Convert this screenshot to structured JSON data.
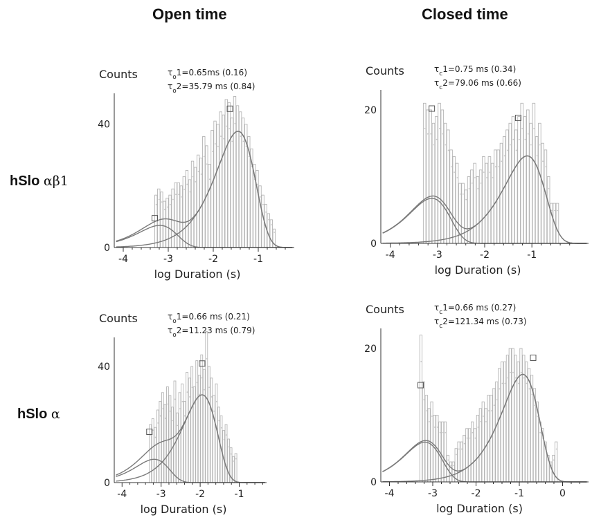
{
  "column_titles": {
    "open": "Open time",
    "closed": "Closed time"
  },
  "row_titles": {
    "top": {
      "name": "hSlo",
      "subunits": "αβ1"
    },
    "bottom": {
      "name": "hSlo",
      "subunits": "α"
    }
  },
  "chart_data": [
    {
      "id": "open-ab1",
      "type": "bar",
      "ylabel": "Counts",
      "xlabel": "log Duration (s)",
      "xlim": [
        -4.2,
        -0.2
      ],
      "ylim": [
        0,
        50
      ],
      "xticks": [
        -4,
        -3,
        -2,
        -1
      ],
      "yticks": [
        0,
        40
      ],
      "annotation": [
        {
          "sym": "τ",
          "sub": "o",
          "text": "1=0.65ms (0.16)"
        },
        {
          "sym": "τ",
          "sub": "o",
          "text": "2=35.79 ms (0.84)"
        }
      ],
      "bins": {
        "start": -3.3,
        "width": 0.0625
      },
      "values": [
        17,
        19,
        18,
        15,
        16,
        17,
        19,
        21,
        21,
        20,
        23,
        25,
        22,
        28,
        26,
        30,
        29,
        36,
        33,
        27,
        38,
        41,
        40,
        44,
        43,
        48,
        47,
        42,
        49,
        46,
        44,
        42,
        40,
        36,
        32,
        27,
        25,
        20,
        17,
        14,
        11,
        9,
        6
      ],
      "components": [
        {
          "tau": -3.19,
          "area": 0.16,
          "peak": [
            -3.3,
            9.5
          ]
        },
        {
          "tau": -1.45,
          "area": 0.84,
          "peak": [
            -1.63,
            45
          ]
        }
      ],
      "fit_scale": 122
    },
    {
      "id": "closed-ab1",
      "type": "bar",
      "ylabel": "Counts",
      "xlabel": "log Duration (s)",
      "xlim": [
        -4.2,
        0.2
      ],
      "ylim": [
        0,
        23
      ],
      "xticks": [
        -4,
        -3,
        -2,
        -1
      ],
      "yticks": [
        0,
        20
      ],
      "annotation": [
        {
          "sym": "τ",
          "sub": "c",
          "text": "1=0.75 ms (0.34)"
        },
        {
          "sym": "τ",
          "sub": "c",
          "text": "2=79.06 ms (0.66)"
        }
      ],
      "bins": {
        "start": -3.3,
        "width": 0.0625
      },
      "values": [
        21,
        20,
        20,
        18,
        19,
        21,
        20,
        18,
        17,
        14,
        13,
        12,
        9,
        9,
        8,
        10,
        11,
        12,
        10,
        11,
        13,
        12,
        13,
        12,
        14,
        14,
        15,
        16,
        17,
        18,
        19,
        17,
        19,
        21,
        19,
        20,
        18,
        21,
        16,
        18,
        15,
        14,
        10,
        6,
        6,
        6
      ],
      "components": [
        {
          "tau": -3.12,
          "area": 0.34,
          "peak": [
            -3.12,
            20.2
          ]
        },
        {
          "tau": -1.1,
          "area": 0.66,
          "peak": [
            -1.29,
            18.8
          ]
        }
      ],
      "fit_scale": 54
    },
    {
      "id": "open-a",
      "type": "bar",
      "ylabel": "Counts",
      "xlabel": "log Duration (s)",
      "xlim": [
        -4.2,
        -0.3
      ],
      "ylim": [
        0,
        50
      ],
      "xticks": [
        -4,
        -3,
        -2,
        -1
      ],
      "yticks": [
        0,
        40
      ],
      "annotation": [
        {
          "sym": "τ",
          "sub": "o",
          "text": "1=0.66 ms (0.21)"
        },
        {
          "sym": "τ",
          "sub": "o",
          "text": "2=11.23 ms (0.79)"
        }
      ],
      "bins": {
        "start": -3.3,
        "width": 0.0625
      },
      "values": [
        20,
        22,
        19,
        25,
        28,
        31,
        27,
        33,
        30,
        26,
        35,
        24,
        31,
        34,
        28,
        38,
        36,
        40,
        33,
        42,
        37,
        44,
        39,
        52,
        40,
        36,
        30,
        34,
        26,
        23,
        18,
        20,
        15,
        12,
        9,
        10
      ],
      "components": [
        {
          "tau": -3.18,
          "area": 0.21,
          "peak": [
            -3.3,
            17.5
          ]
        },
        {
          "tau": -1.95,
          "area": 0.79,
          "peak": [
            -1.95,
            41
          ]
        }
      ],
      "fit_scale": 104
    },
    {
      "id": "closed-a",
      "type": "bar",
      "ylabel": "Counts",
      "xlabel": "log Duration (s)",
      "xlim": [
        -4.2,
        0.6
      ],
      "ylim": [
        0,
        23
      ],
      "xticks": [
        -4,
        -3,
        -2,
        -1,
        0
      ],
      "yticks": [
        0,
        20
      ],
      "annotation": [
        {
          "sym": "τ",
          "sub": "c",
          "text": "1=0.66 ms (0.27)"
        },
        {
          "sym": "τ",
          "sub": "c",
          "text": "2=121.34 ms (0.73)"
        }
      ],
      "bins": {
        "start": -3.3,
        "width": 0.0625
      },
      "values": [
        22,
        15,
        13,
        11,
        12,
        10,
        10,
        9,
        9,
        9,
        4,
        3,
        3,
        5,
        6,
        6,
        7,
        8,
        8,
        9,
        8,
        10,
        11,
        12,
        11,
        13,
        13,
        14,
        15,
        17,
        18,
        18,
        19,
        20,
        20,
        19,
        18,
        20,
        19,
        18,
        17,
        16,
        14,
        12,
        9,
        8,
        6,
        4,
        3,
        4,
        6
      ],
      "components": [
        {
          "tau": -3.18,
          "area": 0.27,
          "peak": [
            -3.28,
            14.5
          ]
        },
        {
          "tau": -0.92,
          "area": 0.73,
          "peak": [
            -0.68,
            18.6
          ]
        }
      ],
      "fit_scale": 60
    }
  ]
}
